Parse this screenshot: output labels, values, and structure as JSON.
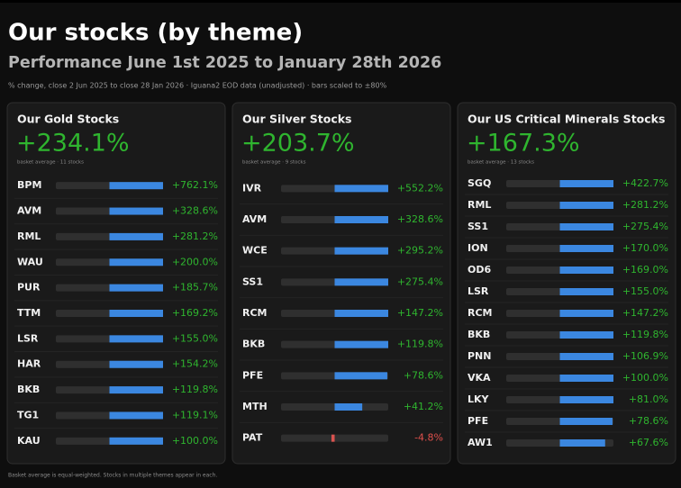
{
  "header": {
    "title": "Our stocks (by theme)",
    "subtitle": "Performance June 1st 2025 to January 28th 2026",
    "note": "% change, close 2 Jun 2025 to close 28 Jan 2026 · Iguana2 EOD data (unadjusted) · bars scaled to ±80%"
  },
  "footer": "Basket average is equal-weighted. Stocks in multiple themes appear in each.",
  "chart_data": [
    {
      "type": "bar",
      "title": "Our Gold Stocks",
      "average": 234.1,
      "average_label": "+234.1%",
      "average_note": "basket average · 11 stocks",
      "categories": [
        "BPM",
        "AVM",
        "RML",
        "WAU",
        "PUR",
        "TTM",
        "LSR",
        "HAR",
        "BKB",
        "TG1",
        "KAU"
      ],
      "values": [
        762.1,
        328.6,
        281.2,
        200.0,
        185.7,
        169.2,
        155.0,
        154.2,
        119.8,
        119.1,
        100.0
      ],
      "value_labels": [
        "+762.1%",
        "+328.6%",
        "+281.2%",
        "+200.0%",
        "+185.7%",
        "+169.2%",
        "+155.0%",
        "+154.2%",
        "+119.8%",
        "+119.1%",
        "+100.0%"
      ],
      "xlim": [
        -80,
        80
      ],
      "color": "#3b87e0",
      "negative_color": "#d9534f",
      "positive_text_color": "#2fb52f",
      "negative_text_color": "#e0504c"
    },
    {
      "type": "bar",
      "title": "Our Silver Stocks",
      "average": 203.7,
      "average_label": "+203.7%",
      "average_note": "basket average · 9 stocks",
      "categories": [
        "IVR",
        "AVM",
        "WCE",
        "SS1",
        "RCM",
        "BKB",
        "PFE",
        "MTH",
        "PAT"
      ],
      "values": [
        552.2,
        328.6,
        295.2,
        275.4,
        147.2,
        119.8,
        78.6,
        41.2,
        -4.8
      ],
      "value_labels": [
        "+552.2%",
        "+328.6%",
        "+295.2%",
        "+275.4%",
        "+147.2%",
        "+119.8%",
        "+78.6%",
        "+41.2%",
        "-4.8%"
      ],
      "xlim": [
        -80,
        80
      ],
      "color": "#3b87e0",
      "negative_color": "#d9534f",
      "positive_text_color": "#2fb52f",
      "negative_text_color": "#e0504c"
    },
    {
      "type": "bar",
      "title": "Our US Critical Minerals Stocks",
      "average": 167.3,
      "average_label": "+167.3%",
      "average_note": "basket average · 13 stocks",
      "categories": [
        "SGQ",
        "RML",
        "SS1",
        "ION",
        "OD6",
        "LSR",
        "RCM",
        "BKB",
        "PNN",
        "VKA",
        "LKY",
        "PFE",
        "AW1"
      ],
      "values": [
        422.7,
        281.2,
        275.4,
        170.0,
        169.0,
        155.0,
        147.2,
        119.8,
        106.9,
        100.0,
        81.0,
        78.6,
        67.6
      ],
      "value_labels": [
        "+422.7%",
        "+281.2%",
        "+275.4%",
        "+170.0%",
        "+169.0%",
        "+155.0%",
        "+147.2%",
        "+119.8%",
        "+106.9%",
        "+100.0%",
        "+81.0%",
        "+78.6%",
        "+67.6%"
      ],
      "xlim": [
        -80,
        80
      ],
      "color": "#3b87e0",
      "negative_color": "#d9534f",
      "positive_text_color": "#2fb52f",
      "negative_text_color": "#e0504c"
    }
  ]
}
